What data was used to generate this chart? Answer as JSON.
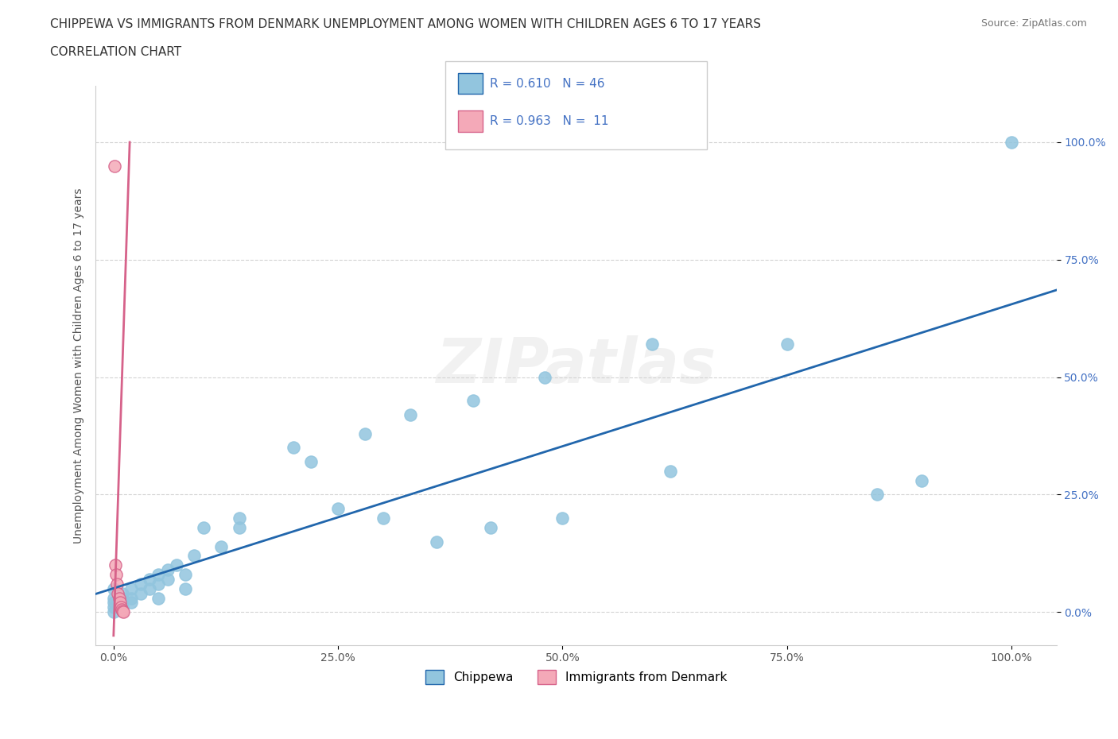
{
  "title_line1": "CHIPPEWA VS IMMIGRANTS FROM DENMARK UNEMPLOYMENT AMONG WOMEN WITH CHILDREN AGES 6 TO 17 YEARS",
  "title_line2": "CORRELATION CHART",
  "source": "Source: ZipAtlas.com",
  "ylabel": "Unemployment Among Women with Children Ages 6 to 17 years",
  "xlim": [
    -0.02,
    1.05
  ],
  "ylim": [
    -0.07,
    1.12
  ],
  "xticks": [
    0.0,
    0.25,
    0.5,
    0.75,
    1.0
  ],
  "xticklabels": [
    "0.0%",
    "25.0%",
    "50.0%",
    "75.0%",
    "100.0%"
  ],
  "ytick_positions": [
    0.0,
    0.25,
    0.5,
    0.75,
    1.0
  ],
  "ytick_labels_right": [
    "0.0%",
    "25.0%",
    "50.0%",
    "75.0%",
    "100.0%"
  ],
  "chippewa_color": "#92C5DE",
  "denmark_color": "#F4A9B8",
  "chippewa_line_color": "#2166AC",
  "denmark_line_color": "#D6628A",
  "R_chippewa": 0.61,
  "N_chippewa": 46,
  "R_denmark": 0.963,
  "N_denmark": 11,
  "legend_label_1": "Chippewa",
  "legend_label_2": "Immigrants from Denmark",
  "watermark": "ZIPatlas",
  "chippewa_x": [
    0.0,
    0.0,
    0.0,
    0.0,
    0.0,
    0.01,
    0.01,
    0.01,
    0.01,
    0.02,
    0.02,
    0.02,
    0.03,
    0.03,
    0.04,
    0.04,
    0.05,
    0.05,
    0.05,
    0.06,
    0.06,
    0.07,
    0.08,
    0.08,
    0.09,
    0.1,
    0.12,
    0.14,
    0.14,
    0.2,
    0.22,
    0.25,
    0.28,
    0.3,
    0.33,
    0.36,
    0.4,
    0.42,
    0.48,
    0.5,
    0.6,
    0.62,
    0.75,
    0.85,
    0.9,
    1.0
  ],
  "chippewa_y": [
    0.05,
    0.03,
    0.02,
    0.01,
    0.0,
    0.04,
    0.03,
    0.02,
    0.01,
    0.05,
    0.03,
    0.02,
    0.06,
    0.04,
    0.07,
    0.05,
    0.08,
    0.06,
    0.03,
    0.09,
    0.07,
    0.1,
    0.08,
    0.05,
    0.12,
    0.18,
    0.14,
    0.2,
    0.18,
    0.35,
    0.32,
    0.22,
    0.38,
    0.2,
    0.42,
    0.15,
    0.45,
    0.18,
    0.5,
    0.2,
    0.57,
    0.3,
    0.57,
    0.25,
    0.28,
    1.0
  ],
  "denmark_x": [
    0.001,
    0.002,
    0.003,
    0.004,
    0.005,
    0.006,
    0.007,
    0.008,
    0.009,
    0.01,
    0.011
  ],
  "denmark_y": [
    0.95,
    0.1,
    0.08,
    0.06,
    0.04,
    0.03,
    0.02,
    0.01,
    0.005,
    0.002,
    0.0
  ],
  "denmark_line_x1": 0.0,
  "denmark_line_y1": -0.05,
  "denmark_line_x2": 0.018,
  "denmark_line_y2": 1.0,
  "chippewa_line_x1": -0.02,
  "chippewa_line_x2": 1.05
}
